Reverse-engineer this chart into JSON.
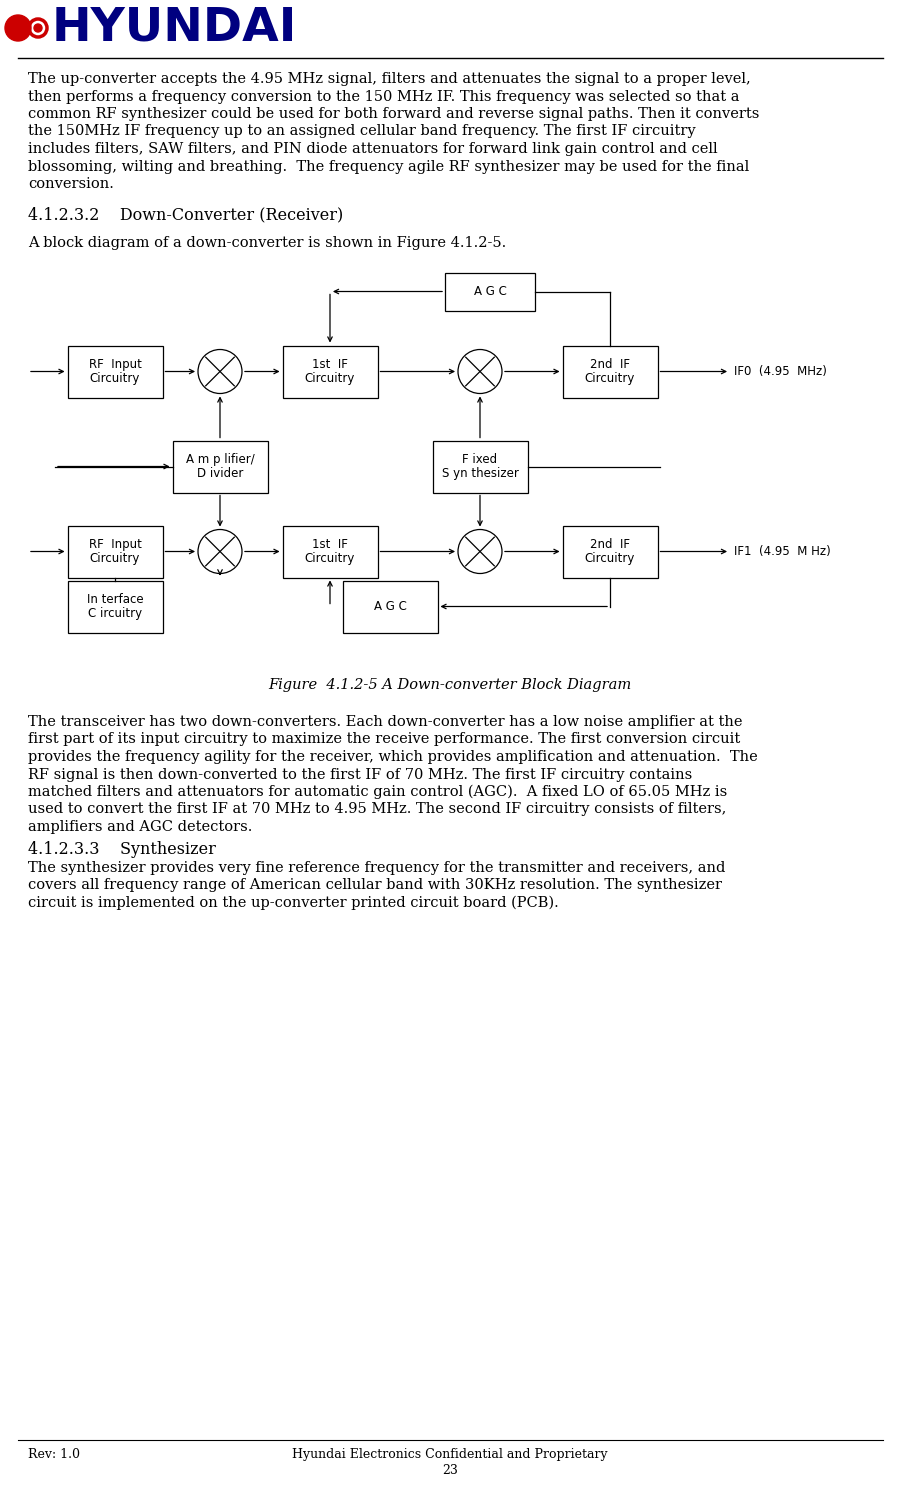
{
  "logo_color": "#00008B",
  "logo_red1": "#CC0000",
  "logo_red2": "#CC0000",
  "bg_color": "#FFFFFF",
  "text_color": "#000000",
  "font_family": "serif",
  "para1": "The up-converter accepts the 4.95 MHz signal, filters and attenuates the signal to a proper level,\nthen performs a frequency conversion to the 150 MHz IF. This frequency was selected so that a\ncommon RF synthesizer could be used for both forward and reverse signal paths. Then it converts\nthe 150MHz IF frequency up to an assigned cellular band frequency. The first IF circuitry\nincludes filters, SAW filters, and PIN diode attenuators for forward link gain control and cell\nblossoming, wilting and breathing.  The frequency agile RF synthesizer may be used for the final\nconversion.",
  "section_heading": "4.1.2.3.2    Down-Converter (Receiver)",
  "para2": "A block diagram of a down-converter is shown in Figure 4.1.2-5.",
  "figure_caption": "Figure  4.1.2-5 A Down-converter Block Diagram",
  "para3": "The transceiver has two down-converters. Each down-converter has a low noise amplifier at the\nfirst part of its input circuitry to maximize the receive performance. The first conversion circuit\nprovides the frequency agility for the receiver, which provides amplification and attenuation.  The\nRF signal is then down-converted to the first IF of 70 MHz. The first IF circuitry contains\nmatched filters and attenuators for automatic gain control (AGC).  A fixed LO of 65.05 MHz is\nused to convert the first IF at 70 MHz to 4.95 MHz. The second IF circuitry consists of filters,\namplifiers and AGC detectors.",
  "section_heading2": "4.1.2.3.3    Synthesizer",
  "para4": "The synthesizer provides very fine reference frequency for the transmitter and receivers, and\ncovers all frequency range of American cellular band with 30KHz resolution. The synthesizer\ncircuit is implemented on the up-converter printed circuit board (PCB).",
  "footer_left": "Rev: 1.0",
  "footer_center": "Hyundai Electronics Confidential and Proprietary",
  "footer_page": "23"
}
